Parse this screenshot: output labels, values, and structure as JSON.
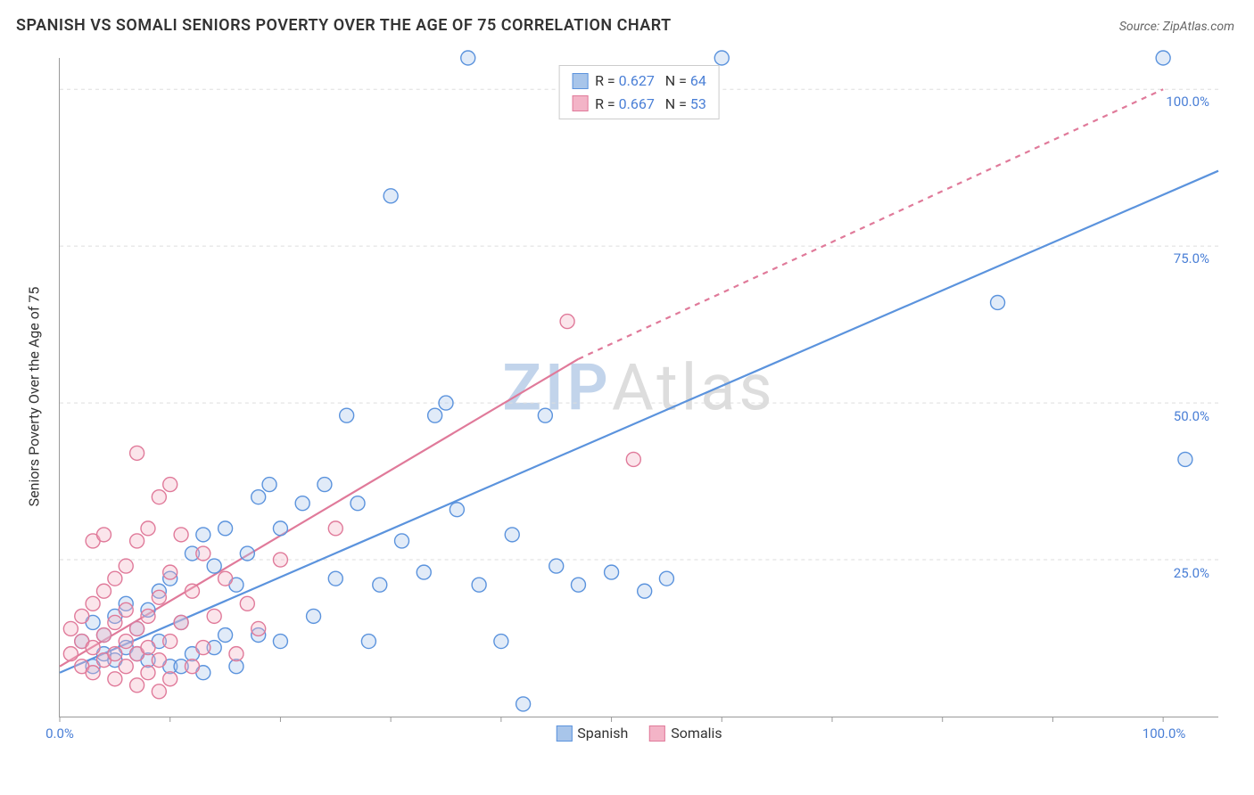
{
  "title": "SPANISH VS SOMALI SENIORS POVERTY OVER THE AGE OF 75 CORRELATION CHART",
  "source_label": "Source: ZipAtlas.com",
  "y_axis_label": "Seniors Poverty Over the Age of 75",
  "watermark_a": "ZIP",
  "watermark_b": "Atlas",
  "chart": {
    "type": "scatter",
    "xlim": [
      0,
      105
    ],
    "ylim": [
      0,
      105
    ],
    "x_ticks": [
      0,
      10,
      20,
      30,
      40,
      50,
      60,
      70,
      80,
      90,
      100
    ],
    "x_tick_labels": {
      "0": "0.0%",
      "100": "100.0%"
    },
    "y_gridlines": [
      25,
      50,
      75,
      100
    ],
    "y_tick_labels": {
      "25": "25.0%",
      "50": "50.0%",
      "75": "75.0%",
      "100": "100.0%"
    },
    "grid_color": "#dddddd",
    "axis_color": "#999999",
    "background_color": "#ffffff",
    "tick_label_color": "#4a7fd6",
    "marker_radius": 8,
    "marker_stroke_width": 1.4,
    "marker_fill_opacity": 0.35,
    "line_width": 2.2,
    "series": [
      {
        "name": "Spanish",
        "color": "#5b93dd",
        "fill": "#a8c5ea",
        "R": "0.627",
        "N": "64",
        "trend": {
          "x1": 0,
          "y1": 7,
          "x2": 105,
          "y2": 87,
          "dashed": false
        },
        "points": [
          [
            2,
            12
          ],
          [
            3,
            8
          ],
          [
            3,
            15
          ],
          [
            4,
            10
          ],
          [
            4,
            13
          ],
          [
            5,
            9
          ],
          [
            5,
            16
          ],
          [
            6,
            11
          ],
          [
            6,
            18
          ],
          [
            7,
            10
          ],
          [
            7,
            14
          ],
          [
            8,
            9
          ],
          [
            8,
            17
          ],
          [
            9,
            12
          ],
          [
            9,
            20
          ],
          [
            10,
            8
          ],
          [
            10,
            22
          ],
          [
            11,
            15
          ],
          [
            12,
            10
          ],
          [
            12,
            26
          ],
          [
            13,
            29
          ],
          [
            14,
            11
          ],
          [
            14,
            24
          ],
          [
            15,
            30
          ],
          [
            16,
            8
          ],
          [
            16,
            21
          ],
          [
            17,
            26
          ],
          [
            18,
            13
          ],
          [
            19,
            37
          ],
          [
            20,
            12
          ],
          [
            20,
            30
          ],
          [
            22,
            34
          ],
          [
            23,
            16
          ],
          [
            24,
            37
          ],
          [
            25,
            22
          ],
          [
            26,
            48
          ],
          [
            27,
            34
          ],
          [
            28,
            12
          ],
          [
            29,
            21
          ],
          [
            30,
            83
          ],
          [
            31,
            28
          ],
          [
            33,
            23
          ],
          [
            34,
            48
          ],
          [
            35,
            50
          ],
          [
            36,
            33
          ],
          [
            37,
            105
          ],
          [
            38,
            21
          ],
          [
            40,
            12
          ],
          [
            41,
            29
          ],
          [
            42,
            2
          ],
          [
            44,
            48
          ],
          [
            45,
            24
          ],
          [
            47,
            21
          ],
          [
            50,
            23
          ],
          [
            53,
            20
          ],
          [
            55,
            22
          ],
          [
            60,
            105
          ],
          [
            85,
            66
          ],
          [
            100,
            105
          ],
          [
            102,
            41
          ],
          [
            11,
            8
          ],
          [
            13,
            7
          ],
          [
            15,
            13
          ],
          [
            18,
            35
          ]
        ]
      },
      {
        "name": "Somalis",
        "color": "#e07a9a",
        "fill": "#f3b4c7",
        "R": "0.667",
        "N": "53",
        "trend": {
          "x1": 0,
          "y1": 8,
          "x2": 47,
          "y2": 57,
          "dashed": false
        },
        "trend_ext": {
          "x1": 47,
          "y1": 57,
          "x2": 100,
          "y2": 100,
          "dashed": true
        },
        "points": [
          [
            1,
            10
          ],
          [
            1,
            14
          ],
          [
            2,
            8
          ],
          [
            2,
            12
          ],
          [
            2,
            16
          ],
          [
            3,
            7
          ],
          [
            3,
            11
          ],
          [
            3,
            18
          ],
          [
            3,
            28
          ],
          [
            4,
            9
          ],
          [
            4,
            13
          ],
          [
            4,
            20
          ],
          [
            4,
            29
          ],
          [
            5,
            6
          ],
          [
            5,
            10
          ],
          [
            5,
            15
          ],
          [
            5,
            22
          ],
          [
            6,
            8
          ],
          [
            6,
            12
          ],
          [
            6,
            17
          ],
          [
            6,
            24
          ],
          [
            7,
            5
          ],
          [
            7,
            10
          ],
          [
            7,
            14
          ],
          [
            7,
            28
          ],
          [
            7,
            42
          ],
          [
            8,
            7
          ],
          [
            8,
            11
          ],
          [
            8,
            16
          ],
          [
            8,
            30
          ],
          [
            9,
            4
          ],
          [
            9,
            9
          ],
          [
            9,
            19
          ],
          [
            9,
            35
          ],
          [
            10,
            6
          ],
          [
            10,
            12
          ],
          [
            10,
            23
          ],
          [
            10,
            37
          ],
          [
            11,
            15
          ],
          [
            11,
            29
          ],
          [
            12,
            8
          ],
          [
            12,
            20
          ],
          [
            13,
            11
          ],
          [
            13,
            26
          ],
          [
            14,
            16
          ],
          [
            15,
            22
          ],
          [
            16,
            10
          ],
          [
            17,
            18
          ],
          [
            18,
            14
          ],
          [
            20,
            25
          ],
          [
            25,
            30
          ],
          [
            46,
            63
          ],
          [
            52,
            41
          ]
        ]
      }
    ],
    "legend_top": {
      "R_label": "R =",
      "N_label": "N ="
    },
    "legend_bottom": [
      {
        "label": "Spanish",
        "color": "#5b93dd",
        "fill": "#a8c5ea"
      },
      {
        "label": "Somalis",
        "color": "#e07a9a",
        "fill": "#f3b4c7"
      }
    ]
  }
}
